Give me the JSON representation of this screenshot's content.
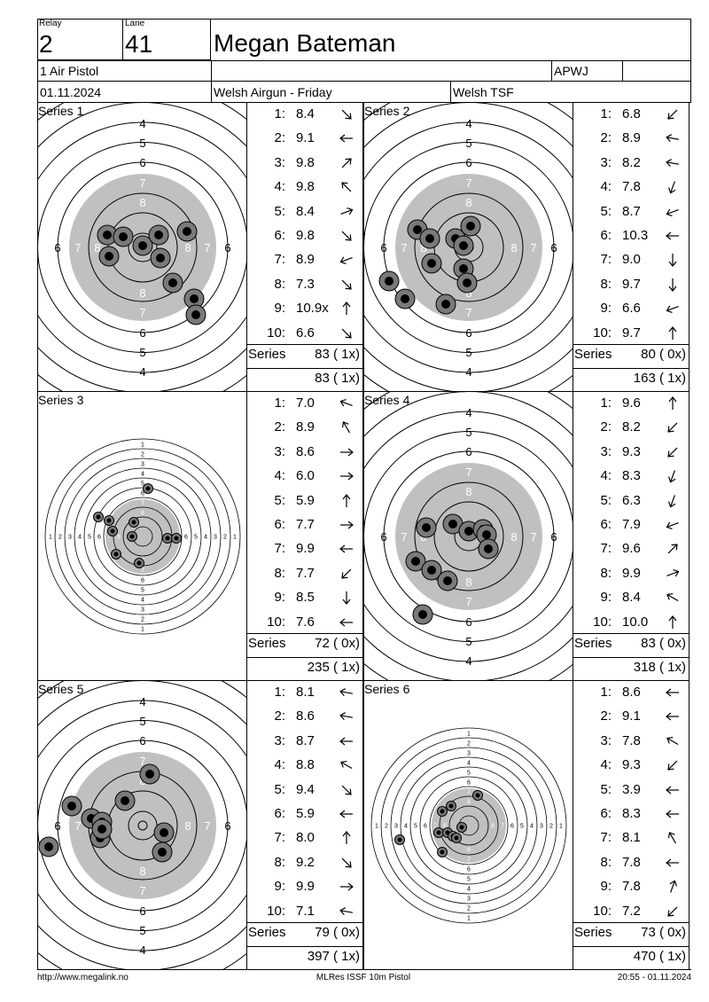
{
  "header": {
    "relay_label": "Relay",
    "relay": "2",
    "lane_label": "Lane",
    "lane": "41",
    "shooter": "Megan Bateman",
    "event": "1 Air Pistol",
    "class": "APWJ",
    "date": "01.11.2024",
    "competition": "Welsh Airgun - Friday",
    "club": "Welsh TSF"
  },
  "series_label": "Series",
  "series": [
    {
      "title": "Series 1",
      "style": "zoom",
      "total": "83 ( 1x)",
      "cumulative": "83 ( 1x)",
      "shots": [
        {
          "n": "1:",
          "v": "8.4",
          "a": 315
        },
        {
          "n": "2:",
          "v": "9.1",
          "a": 180
        },
        {
          "n": "3:",
          "v": "9.8",
          "a": 45
        },
        {
          "n": "4:",
          "v": "9.8",
          "a": 135
        },
        {
          "n": "5:",
          "v": "8.4",
          "a": 20
        },
        {
          "n": "6:",
          "v": "9.8",
          "a": 315
        },
        {
          "n": "7:",
          "v": "8.9",
          "a": 200
        },
        {
          "n": "8:",
          "v": "7.3",
          "a": 315
        },
        {
          "n": "9:",
          "v": "10.9x",
          "a": 90
        },
        {
          "n": "10:",
          "v": "6.6",
          "a": 315
        }
      ]
    },
    {
      "title": "Series 2",
      "style": "zoom",
      "total": "80 ( 0x)",
      "cumulative": "163 ( 1x)",
      "shots": [
        {
          "n": "1:",
          "v": "6.8",
          "a": 225
        },
        {
          "n": "2:",
          "v": "8.9",
          "a": 170
        },
        {
          "n": "3:",
          "v": "8.2",
          "a": 170
        },
        {
          "n": "4:",
          "v": "7.8",
          "a": 250
        },
        {
          "n": "5:",
          "v": "8.7",
          "a": 200
        },
        {
          "n": "6:",
          "v": "10.3",
          "a": 180
        },
        {
          "n": "7:",
          "v": "9.0",
          "a": 270
        },
        {
          "n": "8:",
          "v": "9.7",
          "a": 270
        },
        {
          "n": "9:",
          "v": "6.6",
          "a": 200
        },
        {
          "n": "10:",
          "v": "9.7",
          "a": 90
        }
      ]
    },
    {
      "title": "Series 3",
      "style": "full",
      "total": "72 ( 0x)",
      "cumulative": "235 ( 1x)",
      "shots": [
        {
          "n": "1:",
          "v": "7.0",
          "a": 160
        },
        {
          "n": "2:",
          "v": "8.9",
          "a": 120
        },
        {
          "n": "3:",
          "v": "8.6",
          "a": 0
        },
        {
          "n": "4:",
          "v": "6.0",
          "a": 0
        },
        {
          "n": "5:",
          "v": "5.9",
          "a": 90
        },
        {
          "n": "6:",
          "v": "7.7",
          "a": 0
        },
        {
          "n": "7:",
          "v": "9.9",
          "a": 180
        },
        {
          "n": "8:",
          "v": "7.7",
          "a": 225
        },
        {
          "n": "9:",
          "v": "8.5",
          "a": 270
        },
        {
          "n": "10:",
          "v": "7.6",
          "a": 180
        }
      ]
    },
    {
      "title": "Series 4",
      "style": "zoom",
      "total": "83 ( 0x)",
      "cumulative": "318 ( 1x)",
      "shots": [
        {
          "n": "1:",
          "v": "9.6",
          "a": 90
        },
        {
          "n": "2:",
          "v": "8.2",
          "a": 225
        },
        {
          "n": "3:",
          "v": "9.3",
          "a": 225
        },
        {
          "n": "4:",
          "v": "8.3",
          "a": 250
        },
        {
          "n": "5:",
          "v": "6.3",
          "a": 250
        },
        {
          "n": "6:",
          "v": "7.9",
          "a": 200
        },
        {
          "n": "7:",
          "v": "9.6",
          "a": 45
        },
        {
          "n": "8:",
          "v": "9.9",
          "a": 20
        },
        {
          "n": "9:",
          "v": "8.4",
          "a": 150
        },
        {
          "n": "10:",
          "v": "10.0",
          "a": 90
        }
      ]
    },
    {
      "title": "Series 5",
      "style": "zoom",
      "total": "79 ( 0x)",
      "cumulative": "397 ( 1x)",
      "shots": [
        {
          "n": "1:",
          "v": "8.1",
          "a": 170
        },
        {
          "n": "2:",
          "v": "8.6",
          "a": 170
        },
        {
          "n": "3:",
          "v": "8.7",
          "a": 180
        },
        {
          "n": "4:",
          "v": "8.8",
          "a": 150
        },
        {
          "n": "5:",
          "v": "9.4",
          "a": 315
        },
        {
          "n": "6:",
          "v": "5.9",
          "a": 180
        },
        {
          "n": "7:",
          "v": "8.0",
          "a": 90
        },
        {
          "n": "8:",
          "v": "9.2",
          "a": 315
        },
        {
          "n": "9:",
          "v": "9.9",
          "a": 0
        },
        {
          "n": "10:",
          "v": "7.1",
          "a": 170
        }
      ]
    },
    {
      "title": "Series 6",
      "style": "full",
      "total": "73 ( 0x)",
      "cumulative": "470 ( 1x)",
      "shots": [
        {
          "n": "1:",
          "v": "8.6",
          "a": 180
        },
        {
          "n": "2:",
          "v": "9.1",
          "a": 180
        },
        {
          "n": "3:",
          "v": "7.8",
          "a": 150
        },
        {
          "n": "4:",
          "v": "9.3",
          "a": 225
        },
        {
          "n": "5:",
          "v": "3.9",
          "a": 180
        },
        {
          "n": "6:",
          "v": "8.3",
          "a": 180
        },
        {
          "n": "7:",
          "v": "8.1",
          "a": 120
        },
        {
          "n": "8:",
          "v": "7.8",
          "a": 180
        },
        {
          "n": "9:",
          "v": "7.8",
          "a": 70
        },
        {
          "n": "10:",
          "v": "7.2",
          "a": 225
        }
      ]
    }
  ],
  "footer": {
    "url": "http://www.megalink.no",
    "software": "MLRes ISSF 10m Pistol",
    "timestamp": "20:55 - 01.11.2024"
  },
  "colors": {
    "black_zone": "#c0c0c0",
    "hole": "#7a7a7a"
  }
}
